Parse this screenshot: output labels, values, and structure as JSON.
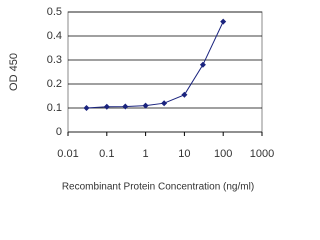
{
  "chart_data": {
    "type": "line",
    "xlabel": "Recombinant Protein Concentration (ng/ml)",
    "ylabel": "OD 450",
    "x": [
      0.03,
      0.1,
      0.3,
      1,
      3,
      10,
      30,
      100
    ],
    "series": [
      {
        "color": "#1a237e",
        "values": [
          0.1,
          0.105,
          0.106,
          0.11,
          0.12,
          0.155,
          0.28,
          0.46
        ]
      }
    ],
    "xlog": true,
    "xlim": [
      0.01,
      1000
    ],
    "xticks": [
      0.01,
      0.1,
      1,
      10,
      100,
      1000
    ],
    "ylim": [
      0,
      0.5
    ],
    "yticks": [
      0,
      0.1,
      0.2,
      0.3,
      0.4,
      0.5
    ],
    "grid": true
  }
}
